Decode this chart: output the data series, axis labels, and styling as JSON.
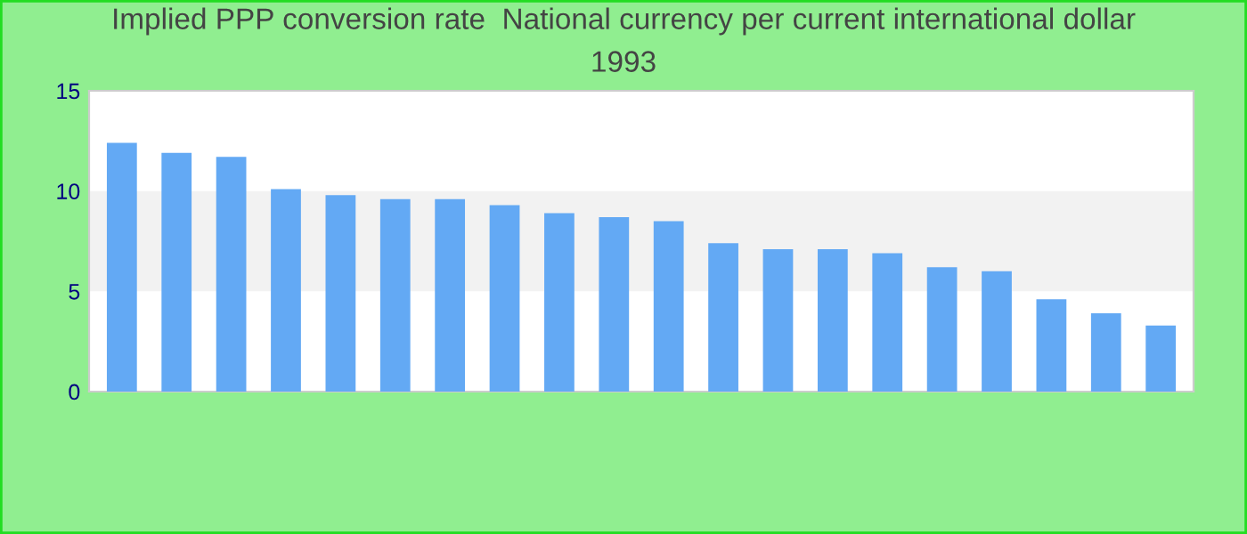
{
  "chart_data": {
    "type": "bar",
    "title": "Implied PPP conversion rate  National currency per current international dollar",
    "subtitle": "1993",
    "categories": [
      null,
      null,
      null,
      null,
      null,
      null,
      null,
      null,
      null,
      null,
      null,
      null,
      null,
      null,
      null,
      null,
      null,
      null,
      null,
      null
    ],
    "values": [
      12.4,
      11.9,
      11.7,
      10.1,
      9.8,
      9.6,
      9.6,
      9.3,
      8.9,
      8.7,
      8.5,
      7.4,
      7.1,
      7.1,
      6.9,
      6.2,
      6.0,
      4.6,
      3.9,
      3.3
    ],
    "color": "#63a9f4",
    "ylim": [
      0,
      15
    ],
    "yticks": [
      0,
      5,
      10,
      15
    ],
    "bands": [
      {
        "axis": "y",
        "from": 5,
        "to": 10,
        "color": "#f2f2f2"
      }
    ],
    "grid": false
  }
}
